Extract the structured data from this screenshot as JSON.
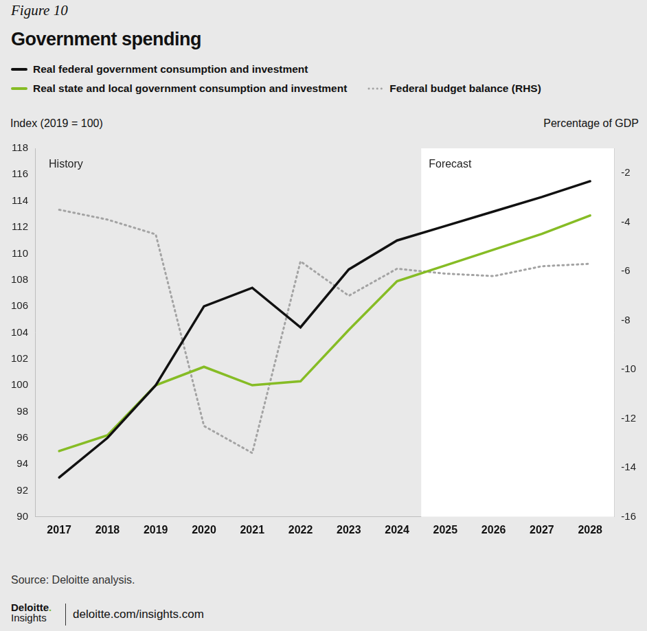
{
  "chart_data": {
    "type": "line",
    "figure_label": "Figure 10",
    "title": "Government spending",
    "y_label": "Index (2019 = 100)",
    "y2_label": "Percentage of GDP",
    "categories": [
      "2017",
      "2018",
      "2019",
      "2020",
      "2021",
      "2022",
      "2023",
      "2024",
      "2025",
      "2026",
      "2027",
      "2028"
    ],
    "series": [
      {
        "name": "Real federal government consumption and investment",
        "color": "#111111",
        "line_style": "solid",
        "values": [
          93,
          96,
          100,
          106,
          107.4,
          104.4,
          108.8,
          111,
          112.1,
          113.2,
          114.3,
          115.5
        ]
      },
      {
        "name": "Real state and local government consumption and investment",
        "color": "#86bc25",
        "line_style": "solid",
        "values": [
          95,
          96.2,
          100,
          101.4,
          100,
          100.3,
          104.2,
          107.9,
          109.1,
          110.3,
          111.5,
          112.9
        ]
      },
      {
        "name": "Federal budget balance (RHS)",
        "color": "#a3a3a3",
        "line_style": "dotted",
        "axis": "y2",
        "values": [
          -3.5,
          -3.9,
          -4.5,
          -12.3,
          -13.4,
          -5.6,
          -7.0,
          -5.9,
          -6.1,
          -6.2,
          -5.8,
          -5.7
        ]
      }
    ],
    "ylim": [
      90,
      118
    ],
    "yticks": [
      90,
      92,
      94,
      96,
      98,
      100,
      102,
      104,
      106,
      108,
      110,
      112,
      114,
      116,
      118
    ],
    "y2lim": [
      -16,
      -1
    ],
    "y2ticks": [
      -16,
      -14,
      -12,
      -10,
      -8,
      -6,
      -4,
      -2
    ],
    "grid": false,
    "legend": "top",
    "annotations": [
      {
        "text": "History",
        "x": "2017"
      },
      {
        "text": "Forecast",
        "x": "2025"
      }
    ],
    "source": "Source: Deloitte analysis.",
    "brand": "Deloitte.",
    "brand_sub": "Insights",
    "url": "deloitte.com/insights.com"
  }
}
